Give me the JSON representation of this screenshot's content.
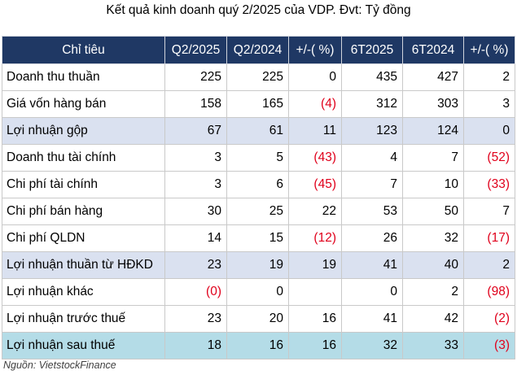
{
  "title": "Kết quả kinh doanh quý 2/2025 của VDP. Đvt: Tỷ đồng",
  "headers": [
    "Chỉ tiêu",
    "Q2/2025",
    "Q2/2024",
    "+/-( %)",
    "6T2025",
    "6T2024",
    "+/-( %)"
  ],
  "rows": [
    {
      "label": "Doanh thu thuần",
      "values": [
        "225",
        "225",
        "0",
        "435",
        "427",
        "2"
      ]
    },
    {
      "label": "Giá vốn hàng bán",
      "values": [
        "158",
        "165",
        "(4)",
        "312",
        "303",
        "3"
      ]
    },
    {
      "label": "Lợi nhuận gộp",
      "values": [
        "67",
        "61",
        "11",
        "123",
        "124",
        "0"
      ]
    },
    {
      "label": "Doanh thu tài chính",
      "values": [
        "3",
        "5",
        "(43)",
        "4",
        "7",
        "(52)"
      ]
    },
    {
      "label": "Chi phí tài chính",
      "values": [
        "3",
        "6",
        "(45)",
        "7",
        "10",
        "(33)"
      ]
    },
    {
      "label": "Chi phí bán hàng",
      "values": [
        "30",
        "25",
        "22",
        "53",
        "50",
        "7"
      ]
    },
    {
      "label": "Chi phí QLDN",
      "values": [
        "14",
        "15",
        "(12)",
        "26",
        "32",
        "(17)"
      ]
    },
    {
      "label": "Lợi nhuận thuần từ HĐKD",
      "values": [
        "23",
        "19",
        "19",
        "41",
        "40",
        "2"
      ]
    },
    {
      "label": "Lợi nhuận khác",
      "values": [
        "(0)",
        "0",
        "",
        "0",
        "2",
        "(98)"
      ]
    },
    {
      "label": "Lợi nhuận trước thuế",
      "values": [
        "23",
        "20",
        "16",
        "41",
        "42",
        "(2)"
      ]
    },
    {
      "label": "Lợi nhuận sau thuế",
      "values": [
        "18",
        "16",
        "16",
        "32",
        "33",
        "(3)"
      ]
    }
  ],
  "source": "Nguồn: VietstockFinance",
  "colors": {
    "header_bg": "#1f3864",
    "highlight": "#dae1f0",
    "highlight_final": "#b4dce7",
    "negative": "#e0001b"
  }
}
